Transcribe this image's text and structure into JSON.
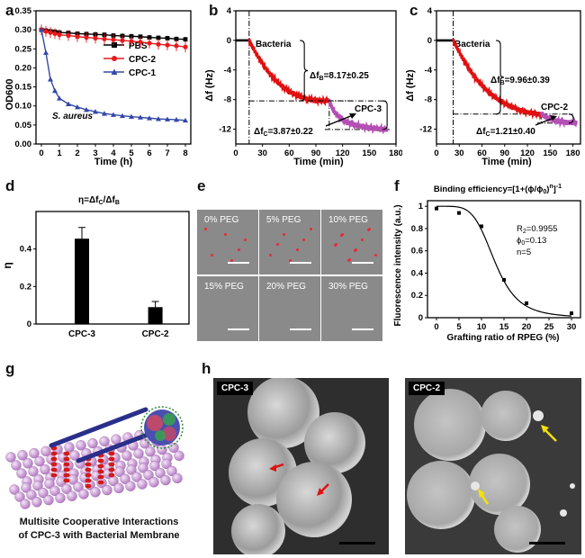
{
  "panels": {
    "a": {
      "letter": "a",
      "ylabel": "OD600",
      "xlabel": "Time (h)",
      "annotation": "S. aureus",
      "legend": [
        "PBS",
        "CPC-2",
        "CPC-1"
      ]
    },
    "b": {
      "letter": "b",
      "ylabel": "Δf (Hz)",
      "xlabel": "Time (min)",
      "bacteria_label": "Bacteria",
      "dfb": "Δf",
      "dfb_sub": "B",
      "dfb_val": "=8.17±0.25",
      "dfc": "Δf",
      "dfc_sub": "C",
      "dfc_val": "=3.87±0.22",
      "cpc_label": "CPC-3"
    },
    "c": {
      "letter": "c",
      "ylabel": "Δf (Hz)",
      "xlabel": "Time (min)",
      "bacteria_label": "Bacteria",
      "dfb": "Δf",
      "dfb_sub": "B",
      "dfb_val": "=9.96±0.39",
      "dfc": "Δf",
      "dfc_sub": "C",
      "dfc_val": "=1.21±0.40",
      "cpc_label": "CPC-2"
    },
    "d": {
      "letter": "d",
      "title": "η=Δf",
      "title_sub1": "C",
      "title_mid": "/Δf",
      "title_sub2": "B",
      "ylabel": "η"
    },
    "e": {
      "letter": "e",
      "tiles": [
        "0% PEG",
        "5% PEG",
        "10% PEG",
        "15% PEG",
        "20% PEG",
        "30% PEG"
      ]
    },
    "f": {
      "letter": "f",
      "title": "Binding efficiency=[1+(ϕ/ϕ",
      "title_sub": "0",
      "title_end": ")",
      "title_sup1": "n",
      "title_close": "]",
      "title_sup2": "-1",
      "ylabel": "Fluorescence intensity (a.u.)",
      "xlabel": "Grafting ratio of RPEG (%)",
      "stat_r": "R",
      "stat_r_sub": "2",
      "stat_r_val": "=0.9955",
      "stat_phi": "ϕ",
      "stat_phi_sub": "0",
      "stat_phi_val": "=0.13",
      "stat_n": "n=5"
    },
    "g": {
      "letter": "g",
      "caption_line1": "Multisite Cooperative  Interactions",
      "caption_line2": "of CPC-3 with Bacterial Membrane"
    },
    "h": {
      "letter": "h",
      "left_tag": "CPC-3",
      "right_tag": "CPC-2"
    }
  },
  "colors": {
    "pbs": "#000000",
    "cpc2": "#e8191c",
    "cpc1": "#3348a8",
    "cpc3_trace": "#b44fb4",
    "bacteria_trace": "#e01010",
    "baseline": "#000000",
    "dots": "#e8293a",
    "arrow_red": "#e01010",
    "arrow_yellow": "#f2e20a"
  },
  "chart_data": [
    {
      "id": "a",
      "type": "line",
      "title": "",
      "xlabel": "Time (h)",
      "ylabel": "OD600",
      "xlim": [
        0,
        8
      ],
      "ylim": [
        0,
        0.35
      ],
      "xticks": [
        0,
        1,
        2,
        3,
        4,
        5,
        6,
        7,
        8
      ],
      "yticks": [
        0,
        0.05,
        0.1,
        0.15,
        0.2,
        0.25,
        0.3,
        0.35
      ],
      "x": [
        0,
        0.25,
        0.5,
        0.75,
        1,
        1.5,
        2,
        2.5,
        3,
        3.5,
        4,
        4.5,
        5,
        5.5,
        6,
        6.5,
        7,
        7.5,
        8
      ],
      "series": [
        {
          "name": "PBS",
          "values": [
            0.3,
            0.298,
            0.296,
            0.295,
            0.293,
            0.292,
            0.29,
            0.289,
            0.288,
            0.287,
            0.285,
            0.284,
            0.283,
            0.282,
            0.28,
            0.279,
            0.278,
            0.276,
            0.275
          ]
        },
        {
          "name": "CPC-2",
          "values": [
            0.3,
            0.296,
            0.293,
            0.29,
            0.287,
            0.285,
            0.282,
            0.28,
            0.278,
            0.276,
            0.274,
            0.272,
            0.27,
            0.268,
            0.265,
            0.262,
            0.26,
            0.258,
            0.255
          ]
        },
        {
          "name": "CPC-1",
          "values": [
            0.3,
            0.24,
            0.17,
            0.14,
            0.12,
            0.105,
            0.097,
            0.09,
            0.085,
            0.08,
            0.077,
            0.074,
            0.072,
            0.07,
            0.068,
            0.066,
            0.065,
            0.064,
            0.062
          ]
        }
      ]
    },
    {
      "id": "b",
      "type": "line",
      "xlabel": "Time (min)",
      "ylabel": "Δf (Hz)",
      "xlim": [
        0,
        180
      ],
      "ylim": [
        -14,
        4
      ],
      "xticks": [
        0,
        30,
        60,
        90,
        120,
        150,
        180
      ],
      "yticks": [
        4,
        0,
        -4,
        -8,
        -12
      ],
      "annotations": {
        "bacteria_start": 15,
        "cpc_start": 105,
        "dfB": 8.17,
        "dfC": 3.87
      },
      "series": [
        {
          "name": "baseline",
          "x": [
            0,
            15
          ],
          "values": [
            0,
            0
          ]
        },
        {
          "name": "bacteria",
          "x": [
            15,
            20,
            30,
            40,
            50,
            60,
            70,
            80,
            90,
            100,
            105
          ],
          "values": [
            0,
            -1.2,
            -3.2,
            -4.8,
            -6.0,
            -6.9,
            -7.5,
            -7.9,
            -8.1,
            -8.17,
            -8.17
          ]
        },
        {
          "name": "CPC-3",
          "x": [
            105,
            110,
            120,
            130,
            140,
            150,
            160,
            170
          ],
          "values": [
            -8.17,
            -9.6,
            -10.8,
            -11.3,
            -11.6,
            -11.8,
            -11.95,
            -12.04
          ]
        }
      ]
    },
    {
      "id": "c",
      "type": "line",
      "xlabel": "Time (min)",
      "ylabel": "Δf (Hz)",
      "xlim": [
        0,
        190
      ],
      "ylim": [
        -14,
        4
      ],
      "xticks": [
        0,
        30,
        60,
        90,
        120,
        150,
        180
      ],
      "yticks": [
        4,
        0,
        -4,
        -8,
        -12
      ],
      "annotations": {
        "bacteria_start": 22,
        "cpc_start": 138,
        "dfB": 9.96,
        "dfC": 1.21
      },
      "series": [
        {
          "name": "baseline",
          "x": [
            0,
            22
          ],
          "values": [
            0,
            0
          ]
        },
        {
          "name": "bacteria",
          "x": [
            22,
            30,
            40,
            50,
            60,
            70,
            80,
            90,
            100,
            110,
            120,
            130,
            138
          ],
          "values": [
            0,
            -1.6,
            -3.4,
            -4.9,
            -6.1,
            -7.1,
            -7.9,
            -8.5,
            -9.0,
            -9.4,
            -9.7,
            -9.9,
            -9.96
          ]
        },
        {
          "name": "CPC-2",
          "x": [
            138,
            145,
            155,
            165,
            175,
            185
          ],
          "values": [
            -9.96,
            -10.4,
            -10.8,
            -11.0,
            -11.1,
            -11.17
          ]
        }
      ]
    },
    {
      "id": "d",
      "type": "bar",
      "title": "η=ΔfC/ΔfB",
      "ylabel": "η",
      "categories": [
        "CPC-3",
        "CPC-2"
      ],
      "values": [
        0.455,
        0.09
      ],
      "errors": [
        0.06,
        0.03
      ],
      "ylim": [
        0,
        0.6
      ],
      "yticks": [
        0,
        0.2,
        0.4
      ]
    },
    {
      "id": "f",
      "type": "scatter",
      "title": "Binding efficiency=[1+(ϕ/ϕ0)^n]^-1",
      "xlabel": "Grafting ratio of RPEG (%)",
      "ylabel": "Fluorescence intensity (a.u.)",
      "xlim": [
        -2,
        32
      ],
      "ylim": [
        0,
        1.05
      ],
      "xticks": [
        0,
        5,
        10,
        15,
        20,
        25,
        30
      ],
      "yticks": [
        0,
        0.2,
        0.4,
        0.6,
        0.8,
        1
      ],
      "points": {
        "x": [
          0,
          5,
          10,
          15,
          20,
          30
        ],
        "y": [
          0.98,
          0.94,
          0.82,
          0.34,
          0.13,
          0.04
        ]
      },
      "fit": {
        "phi0": 13,
        "n": 5,
        "r2": 0.9955
      }
    }
  ]
}
